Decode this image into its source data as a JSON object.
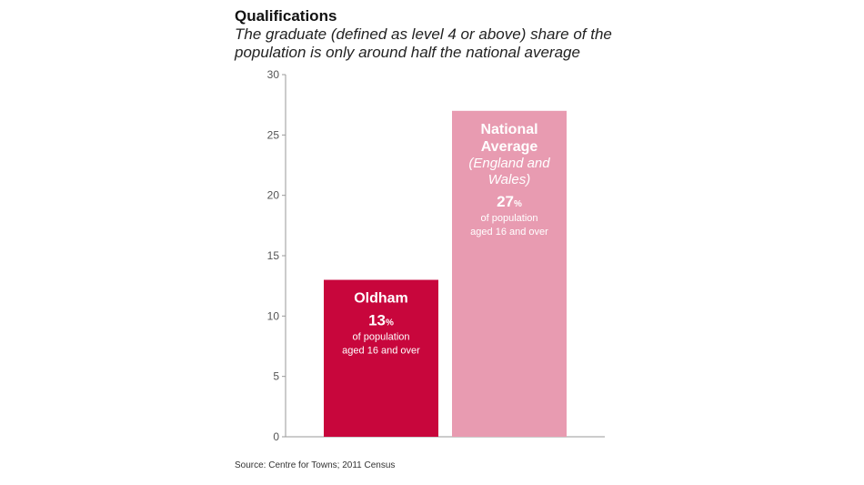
{
  "title": "Qualifications",
  "subtitle_lines": [
    "The graduate (defined as level 4 or above) share of the",
    "population is only around half the national average"
  ],
  "source": "Source: Centre for Towns; 2011 Census",
  "colors": {
    "oldham": "#c8063c",
    "national": "#e89bb1"
  },
  "chart_data": {
    "type": "bar",
    "categories": [
      "Oldham",
      "National Average (England and Wales)"
    ],
    "values": [
      13,
      27
    ],
    "ylim": [
      0,
      30
    ],
    "yticks": [
      0,
      5,
      10,
      15,
      20,
      25,
      30
    ],
    "grid": false,
    "bars": [
      {
        "name_lines": [
          "Oldham"
        ],
        "sub_lines": [],
        "value_text": "13",
        "unit": "%",
        "desc_lines": [
          "of population",
          "aged 16 and over"
        ]
      },
      {
        "name_lines": [
          "National",
          "Average"
        ],
        "sub_lines": [
          "(England and",
          "Wales)"
        ],
        "value_text": "27",
        "unit": "%",
        "desc_lines": [
          "of population",
          "aged 16 and over"
        ]
      }
    ]
  }
}
